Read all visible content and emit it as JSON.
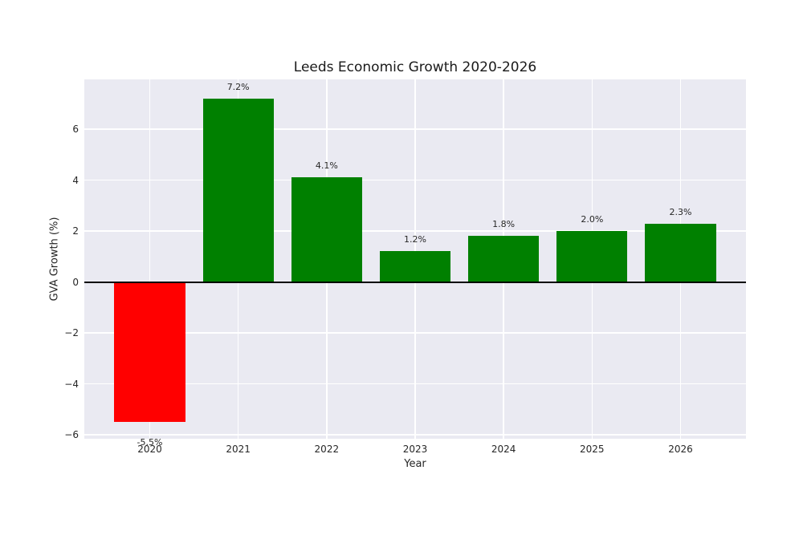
{
  "chart_data": {
    "type": "bar",
    "title": "Leeds Economic Growth 2020-2026",
    "xlabel": "Year",
    "ylabel": "GVA Growth (%)",
    "categories": [
      "2020",
      "2021",
      "2022",
      "2023",
      "2024",
      "2025",
      "2026"
    ],
    "values": [
      -5.5,
      7.2,
      4.1,
      1.2,
      1.8,
      2.0,
      2.3
    ],
    "bar_labels": [
      "-5.5%",
      "7.2%",
      "4.1%",
      "1.2%",
      "1.8%",
      "2.0%",
      "2.3%"
    ],
    "bar_colors": [
      "#ff0000",
      "#008000",
      "#008000",
      "#008000",
      "#008000",
      "#008000",
      "#008000"
    ],
    "yticks": [
      -6,
      -4,
      -2,
      0,
      2,
      4,
      6
    ],
    "ytick_labels": [
      "−6",
      "−4",
      "−2",
      "0",
      "2",
      "4",
      "6"
    ],
    "ylim": [
      -6.15,
      7.95
    ],
    "xlim": [
      -0.74,
      6.74
    ],
    "bar_width": 0.8,
    "grid": true,
    "legend": "none",
    "figure_bg": "#ffffff",
    "plot_bg": "#eaeaf2",
    "grid_color": "#ffffff",
    "zero_line_color": "#000000",
    "text_color": "#262626",
    "positive_color": "#008000",
    "negative_color": "#ff0000"
  }
}
